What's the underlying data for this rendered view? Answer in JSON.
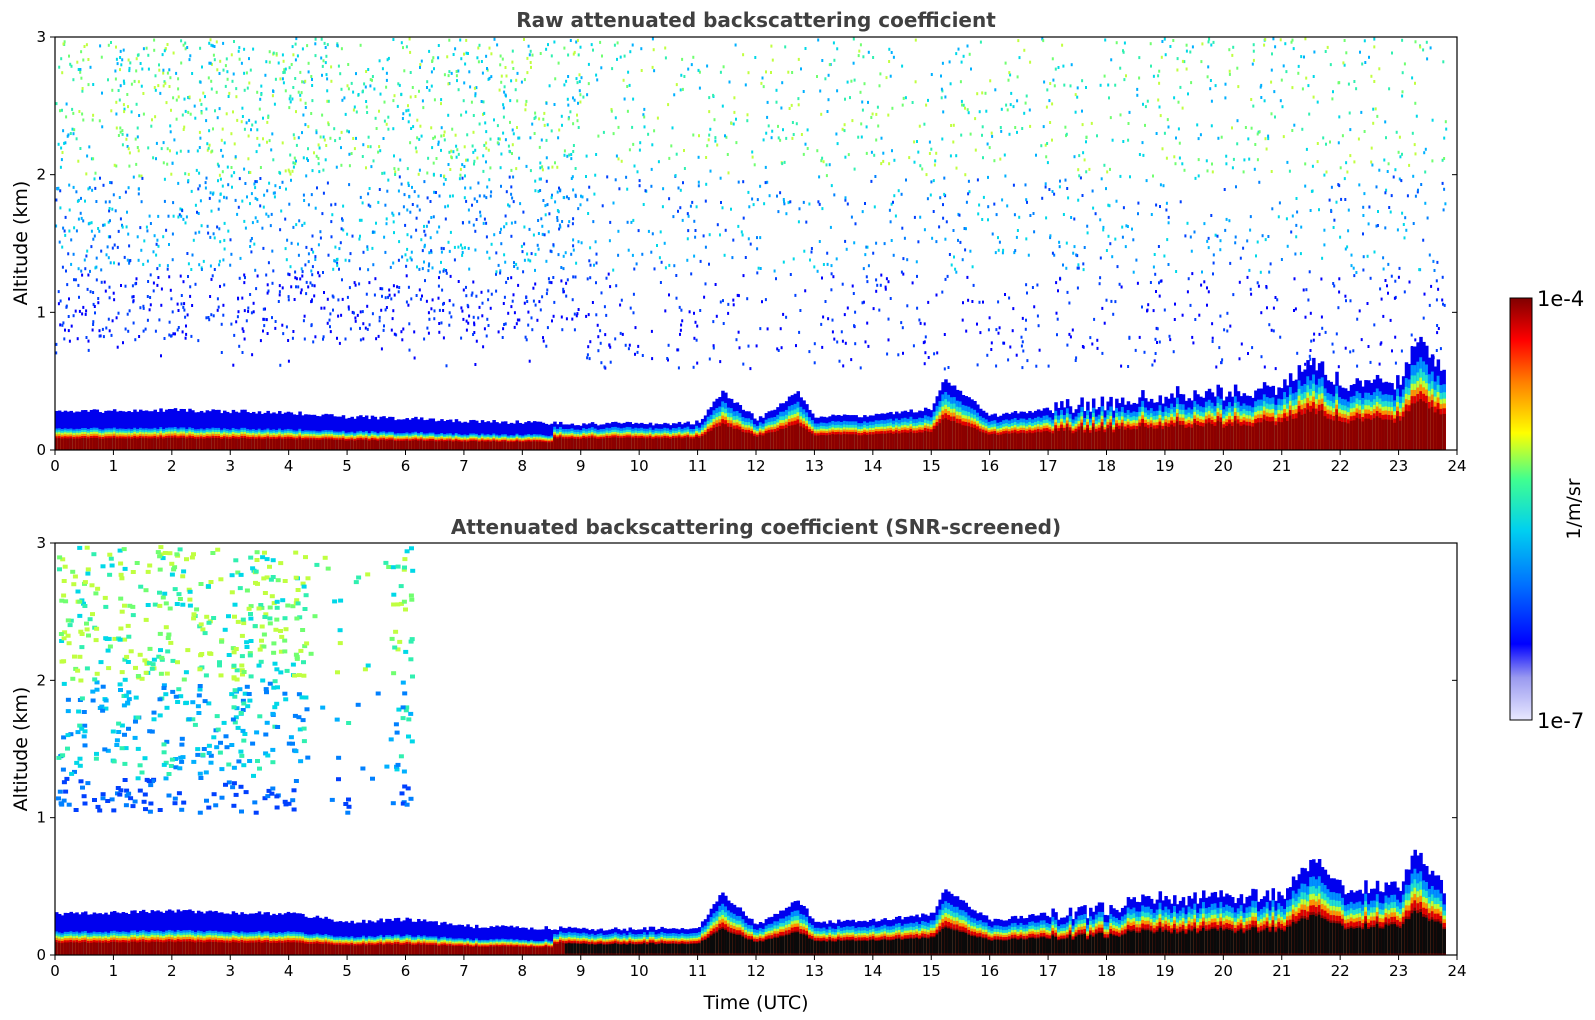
{
  "chart_data": [
    {
      "type": "heatmap",
      "title": "Raw attenuated backscattering coefficient",
      "xlabel": "",
      "ylabel": "Altitude (km)",
      "xlim": [
        0,
        24
      ],
      "ylim": [
        0,
        3
      ],
      "xticks": [
        "0",
        "1",
        "2",
        "3",
        "4",
        "5",
        "6",
        "7",
        "8",
        "9",
        "10",
        "11",
        "12",
        "13",
        "14",
        "15",
        "16",
        "17",
        "18",
        "19",
        "20",
        "21",
        "22",
        "23",
        "24"
      ],
      "yticks": [
        "0",
        "1",
        "2",
        "3"
      ],
      "boundary_layer_top_km": [
        [
          0,
          0.28
        ],
        [
          2,
          0.29
        ],
        [
          4,
          0.27
        ],
        [
          5,
          0.24
        ],
        [
          6,
          0.23
        ],
        [
          7,
          0.21
        ],
        [
          8,
          0.2
        ],
        [
          9,
          0.19
        ],
        [
          10,
          0.19
        ],
        [
          11,
          0.2
        ],
        [
          11.4,
          0.42
        ],
        [
          12,
          0.22
        ],
        [
          12.7,
          0.42
        ],
        [
          13,
          0.24
        ],
        [
          14,
          0.25
        ],
        [
          15,
          0.3
        ],
        [
          15.2,
          0.52
        ],
        [
          16,
          0.25
        ],
        [
          17,
          0.3
        ],
        [
          18,
          0.34
        ],
        [
          19,
          0.4
        ],
        [
          20,
          0.42
        ],
        [
          21,
          0.45
        ],
        [
          21.5,
          0.65
        ],
        [
          22,
          0.48
        ],
        [
          23,
          0.5
        ],
        [
          23.3,
          0.8
        ],
        [
          23.8,
          0.55
        ]
      ]
    },
    {
      "type": "heatmap",
      "title": "Attenuated backscattering coefficient (SNR-screened)",
      "xlabel": "Time (UTC)",
      "ylabel": "Altitude (km)",
      "xlim": [
        0,
        24
      ],
      "ylim": [
        0,
        3
      ],
      "xticks": [
        "0",
        "1",
        "2",
        "3",
        "4",
        "5",
        "6",
        "7",
        "8",
        "9",
        "10",
        "11",
        "12",
        "13",
        "14",
        "15",
        "16",
        "17",
        "18",
        "19",
        "20",
        "21",
        "22",
        "23",
        "24"
      ],
      "yticks": [
        "0",
        "1",
        "2",
        "3"
      ],
      "boundary_layer_top_km": [
        [
          0,
          0.3
        ],
        [
          2,
          0.32
        ],
        [
          4,
          0.3
        ],
        [
          5,
          0.24
        ],
        [
          6,
          0.26
        ],
        [
          7,
          0.21
        ],
        [
          8,
          0.2
        ],
        [
          9,
          0.19
        ],
        [
          10,
          0.19
        ],
        [
          11,
          0.2
        ],
        [
          11.4,
          0.45
        ],
        [
          12,
          0.22
        ],
        [
          12.7,
          0.4
        ],
        [
          13,
          0.24
        ],
        [
          14,
          0.25
        ],
        [
          15,
          0.3
        ],
        [
          15.2,
          0.48
        ],
        [
          16,
          0.25
        ],
        [
          17,
          0.3
        ],
        [
          18,
          0.34
        ],
        [
          19,
          0.42
        ],
        [
          20,
          0.42
        ],
        [
          21,
          0.45
        ],
        [
          21.5,
          0.7
        ],
        [
          22,
          0.5
        ],
        [
          23,
          0.52
        ],
        [
          23.3,
          0.78
        ],
        [
          23.8,
          0.45
        ]
      ]
    }
  ],
  "colorbar": {
    "label": "1/m/sr",
    "max_label": "1e-4",
    "min_label": "1e-7",
    "scale": "log",
    "colors": [
      "#e8e8ff",
      "#b0b0f5",
      "#0000ff",
      "#0090ff",
      "#00e0f0",
      "#40ff90",
      "#ffff00",
      "#ff8000",
      "#ff0000",
      "#800000"
    ]
  }
}
